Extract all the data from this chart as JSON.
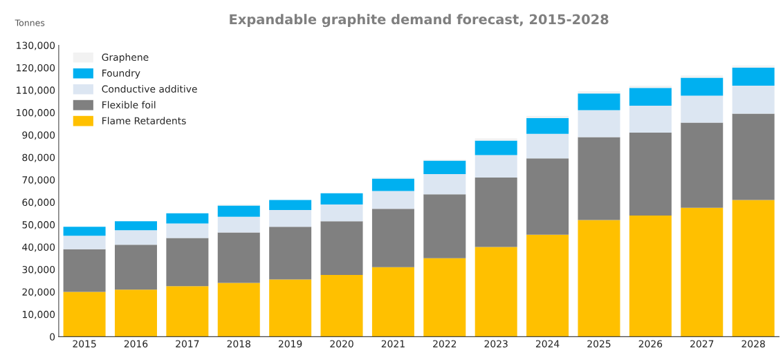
{
  "chart_data": {
    "type": "bar",
    "title": "Expandable graphite demand forecast, 2015-2028",
    "ylabel": "Tonnes",
    "stacked": true,
    "categories": [
      "2015",
      "2016",
      "2017",
      "2018",
      "2019",
      "2020",
      "2021",
      "2022",
      "2023",
      "2024",
      "2025",
      "2026",
      "2027",
      "2028"
    ],
    "series": [
      {
        "name": "Flame Retardents",
        "color": "#ffc000",
        "values": [
          20000,
          21000,
          22500,
          24000,
          25500,
          27500,
          31000,
          35000,
          40000,
          45500,
          52000,
          54000,
          57500,
          61000
        ]
      },
      {
        "name": "Flexible foil",
        "color": "#808080",
        "values": [
          19000,
          20000,
          21500,
          22500,
          23500,
          24000,
          26000,
          28500,
          31000,
          34000,
          37000,
          37000,
          38000,
          38500
        ]
      },
      {
        "name": "Conductive additive",
        "color": "#dce6f2",
        "values": [
          6000,
          6500,
          6500,
          7000,
          7500,
          7500,
          8000,
          9000,
          10000,
          11000,
          12000,
          12000,
          12000,
          12500
        ]
      },
      {
        "name": "Foundry",
        "color": "#00b0f0",
        "values": [
          4000,
          4000,
          4500,
          5000,
          4500,
          5000,
          5500,
          6000,
          6500,
          7000,
          7500,
          8000,
          8000,
          8000
        ]
      },
      {
        "name": "Graphene",
        "color": "#f2f2f2",
        "values": [
          null,
          null,
          null,
          500,
          null,
          null,
          500,
          500,
          1000,
          1000,
          1000,
          1000,
          1000,
          1000
        ]
      }
    ],
    "ylim": [
      0,
      130000
    ],
    "yticks": [
      {
        "value": 0,
        "label": "0"
      },
      {
        "value": 10000,
        "label": "10,000"
      },
      {
        "value": 20000,
        "label": "20,000"
      },
      {
        "value": 30000,
        "label": "30,000"
      },
      {
        "value": 40000,
        "label": "40,000"
      },
      {
        "value": 50000,
        "label": "50,000"
      },
      {
        "value": 60000,
        "label": "60,000"
      },
      {
        "value": 70000,
        "label": "70,000"
      },
      {
        "value": 80000,
        "label": "80,000"
      },
      {
        "value": 90000,
        "label": "90,000"
      },
      {
        "value": 100000,
        "label": "100,000"
      },
      {
        "value": 110000,
        "label": "110,000"
      },
      {
        "value": 120000,
        "label": "120,000"
      },
      {
        "value": 130000,
        "label": "130,000"
      }
    ],
    "grid": false,
    "legend": "top left"
  }
}
